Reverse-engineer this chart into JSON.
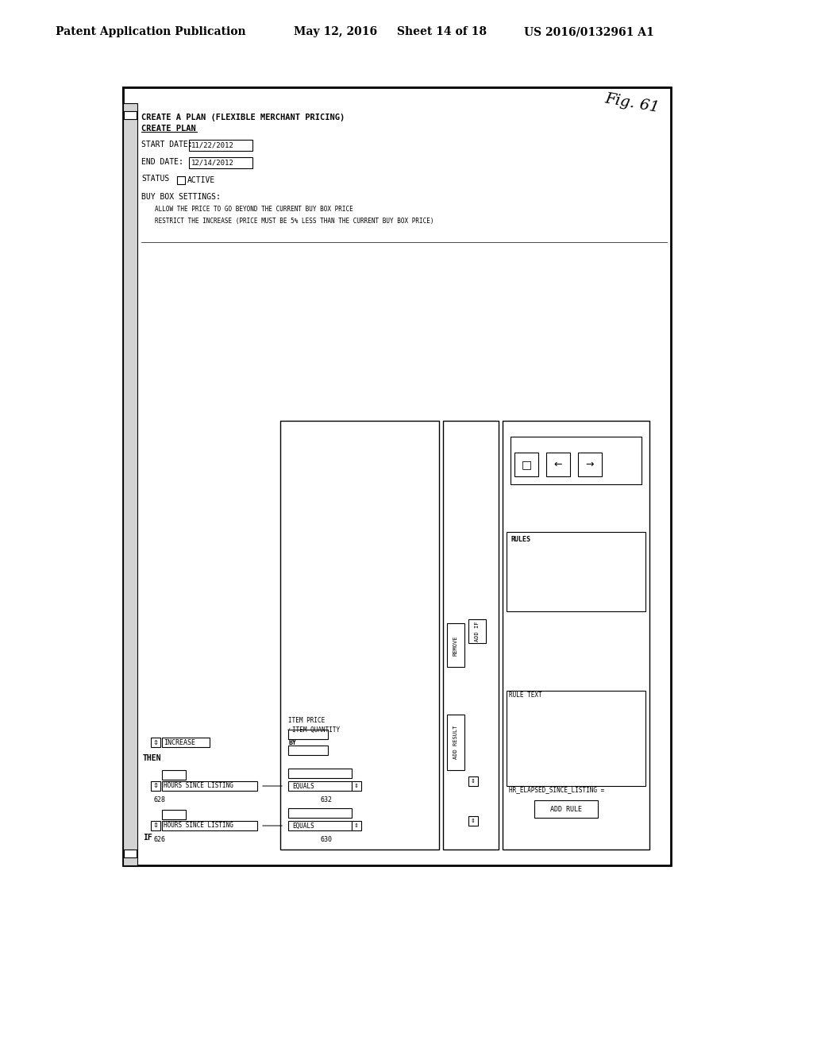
{
  "title_line1": "Patent Application Publication",
  "title_date": "May 12, 2016",
  "title_sheet": "Sheet 14 of 18",
  "title_patent": "US 2016/0132961 A1",
  "fig_label": "Fig. 61",
  "bg_color": "#ffffff",
  "border_color": "#000000",
  "header_text": "CREATE A PLAN (FLEXIBLE MERCHANT PRICING)",
  "create_plan_btn": "CREATE PLAN",
  "start_date_label": "START DATE:",
  "start_date_val": "11/22/2012",
  "end_date_label": "END DATE:",
  "end_date_val": "12/14/2012",
  "status_label": "STATUS",
  "active_label": "ACTIVE",
  "buy_box_label": "BUY BOX SETTINGS:",
  "buy_box_opt1": "ALLOW THE PRICE TO GO BEYOND THE CURRENT BUY BOX PRICE",
  "buy_box_opt2": "RESTRICT THE INCREASE (PRICE MUST BE 5% LESS THAN THE CURRENT BUY BOX PRICE)",
  "if_label": "IF",
  "then_label": "THEN",
  "hours_since_listing1": "HOURS SINCE LISTING",
  "hours_since_listing2": "HOURS SINCE LISTING",
  "equals1": "EQUALS",
  "equals2": "EQUALS",
  "by_label": "BY",
  "increase_label": "INCREASE",
  "item_price_label": "ITEM PRICE",
  "item_quantity_label": "ITEM QUANTITY",
  "add_result_btn": "ADD RESULT",
  "remove_btn": "REMOVE",
  "add_if_btn": "ADD IF",
  "rules_label": "RULES",
  "rule_text_label": "RULE TEXT",
  "hr_elapsed_label": "HR_ELAPSED_SINCE_LISTING =",
  "add_rule_btn": "ADD RULE",
  "num_626": "626",
  "num_628": "628",
  "num_630": "630",
  "num_632": "632"
}
